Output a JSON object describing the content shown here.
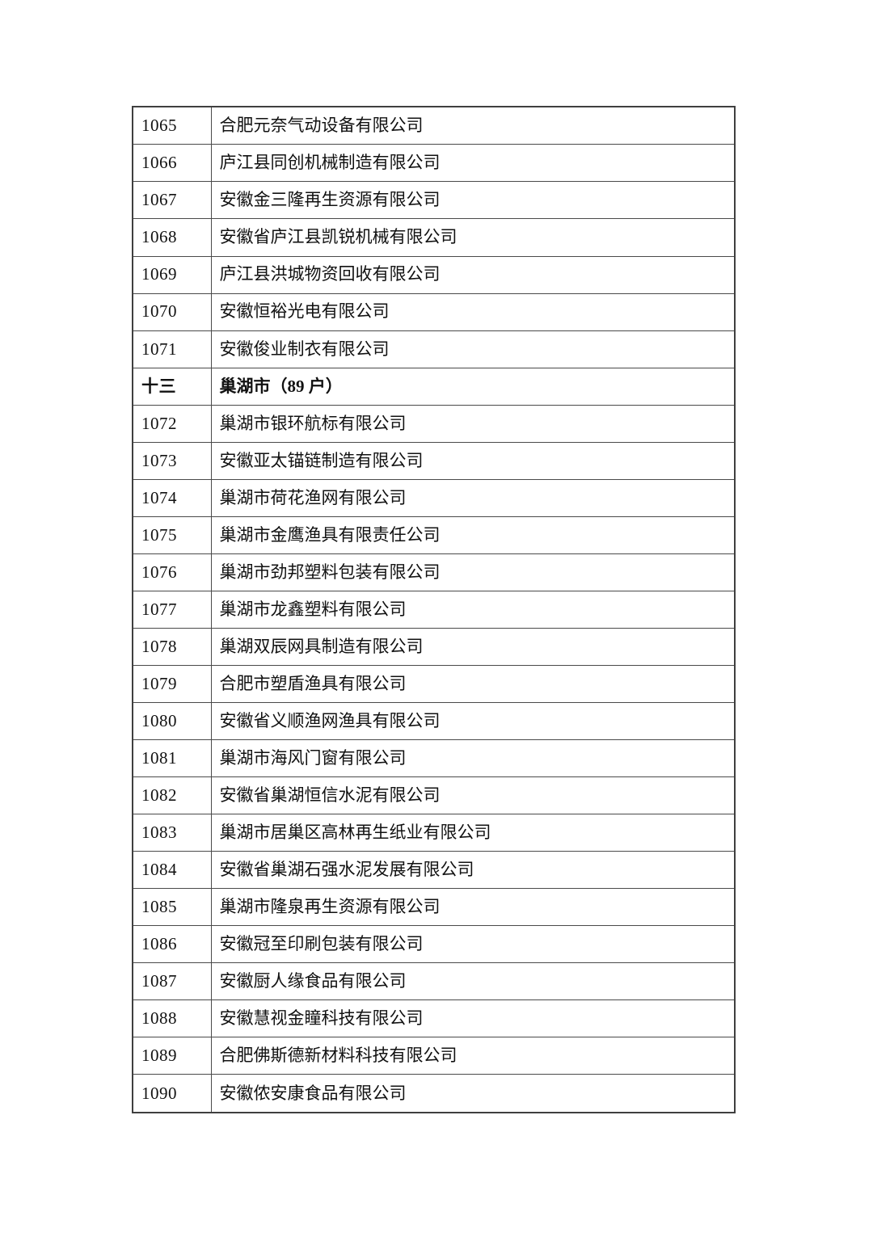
{
  "document": {
    "background_color": "#ffffff",
    "text_color": "#111111",
    "border_color": "#3f3f3f"
  },
  "table": {
    "columns": [
      "serial_number",
      "company_name"
    ],
    "rows": [
      {
        "type": "entry",
        "no": "1065",
        "name": "合肥元奈气动设备有限公司"
      },
      {
        "type": "entry",
        "no": "1066",
        "name": "庐江县同创机械制造有限公司"
      },
      {
        "type": "entry",
        "no": "1067",
        "name": "安徽金三隆再生资源有限公司"
      },
      {
        "type": "entry",
        "no": "1068",
        "name": "安徽省庐江县凯锐机械有限公司"
      },
      {
        "type": "entry",
        "no": "1069",
        "name": "庐江县洪城物资回收有限公司"
      },
      {
        "type": "entry",
        "no": "1070",
        "name": "安徽恒裕光电有限公司"
      },
      {
        "type": "entry",
        "no": "1071",
        "name": "安徽俊业制衣有限公司"
      },
      {
        "type": "section",
        "no": "十三",
        "name": "巢湖市（89 户）"
      },
      {
        "type": "entry",
        "no": "1072",
        "name": "巢湖市银环航标有限公司"
      },
      {
        "type": "entry",
        "no": "1073",
        "name": "安徽亚太锚链制造有限公司"
      },
      {
        "type": "entry",
        "no": "1074",
        "name": "巢湖市荷花渔网有限公司"
      },
      {
        "type": "entry",
        "no": "1075",
        "name": "巢湖市金鹰渔具有限责任公司"
      },
      {
        "type": "entry",
        "no": "1076",
        "name": "巢湖市劲邦塑料包装有限公司"
      },
      {
        "type": "entry",
        "no": "1077",
        "name": "巢湖市龙鑫塑料有限公司"
      },
      {
        "type": "entry",
        "no": "1078",
        "name": "巢湖双辰网具制造有限公司"
      },
      {
        "type": "entry",
        "no": "1079",
        "name": "合肥市塑盾渔具有限公司"
      },
      {
        "type": "entry",
        "no": "1080",
        "name": "安徽省义顺渔网渔具有限公司"
      },
      {
        "type": "entry",
        "no": "1081",
        "name": "巢湖市海风门窗有限公司"
      },
      {
        "type": "entry",
        "no": "1082",
        "name": "安徽省巢湖恒信水泥有限公司"
      },
      {
        "type": "entry",
        "no": "1083",
        "name": "巢湖市居巢区高林再生纸业有限公司"
      },
      {
        "type": "entry",
        "no": "1084",
        "name": "安徽省巢湖石强水泥发展有限公司"
      },
      {
        "type": "entry",
        "no": "1085",
        "name": "巢湖市隆泉再生资源有限公司"
      },
      {
        "type": "entry",
        "no": "1086",
        "name": "安徽冠至印刷包装有限公司"
      },
      {
        "type": "entry",
        "no": "1087",
        "name": "安徽厨人缘食品有限公司"
      },
      {
        "type": "entry",
        "no": "1088",
        "name": "安徽慧视金瞳科技有限公司"
      },
      {
        "type": "entry",
        "no": "1089",
        "name": "合肥佛斯德新材料科技有限公司"
      },
      {
        "type": "entry",
        "no": "1090",
        "name": "安徽侬安康食品有限公司"
      }
    ]
  }
}
